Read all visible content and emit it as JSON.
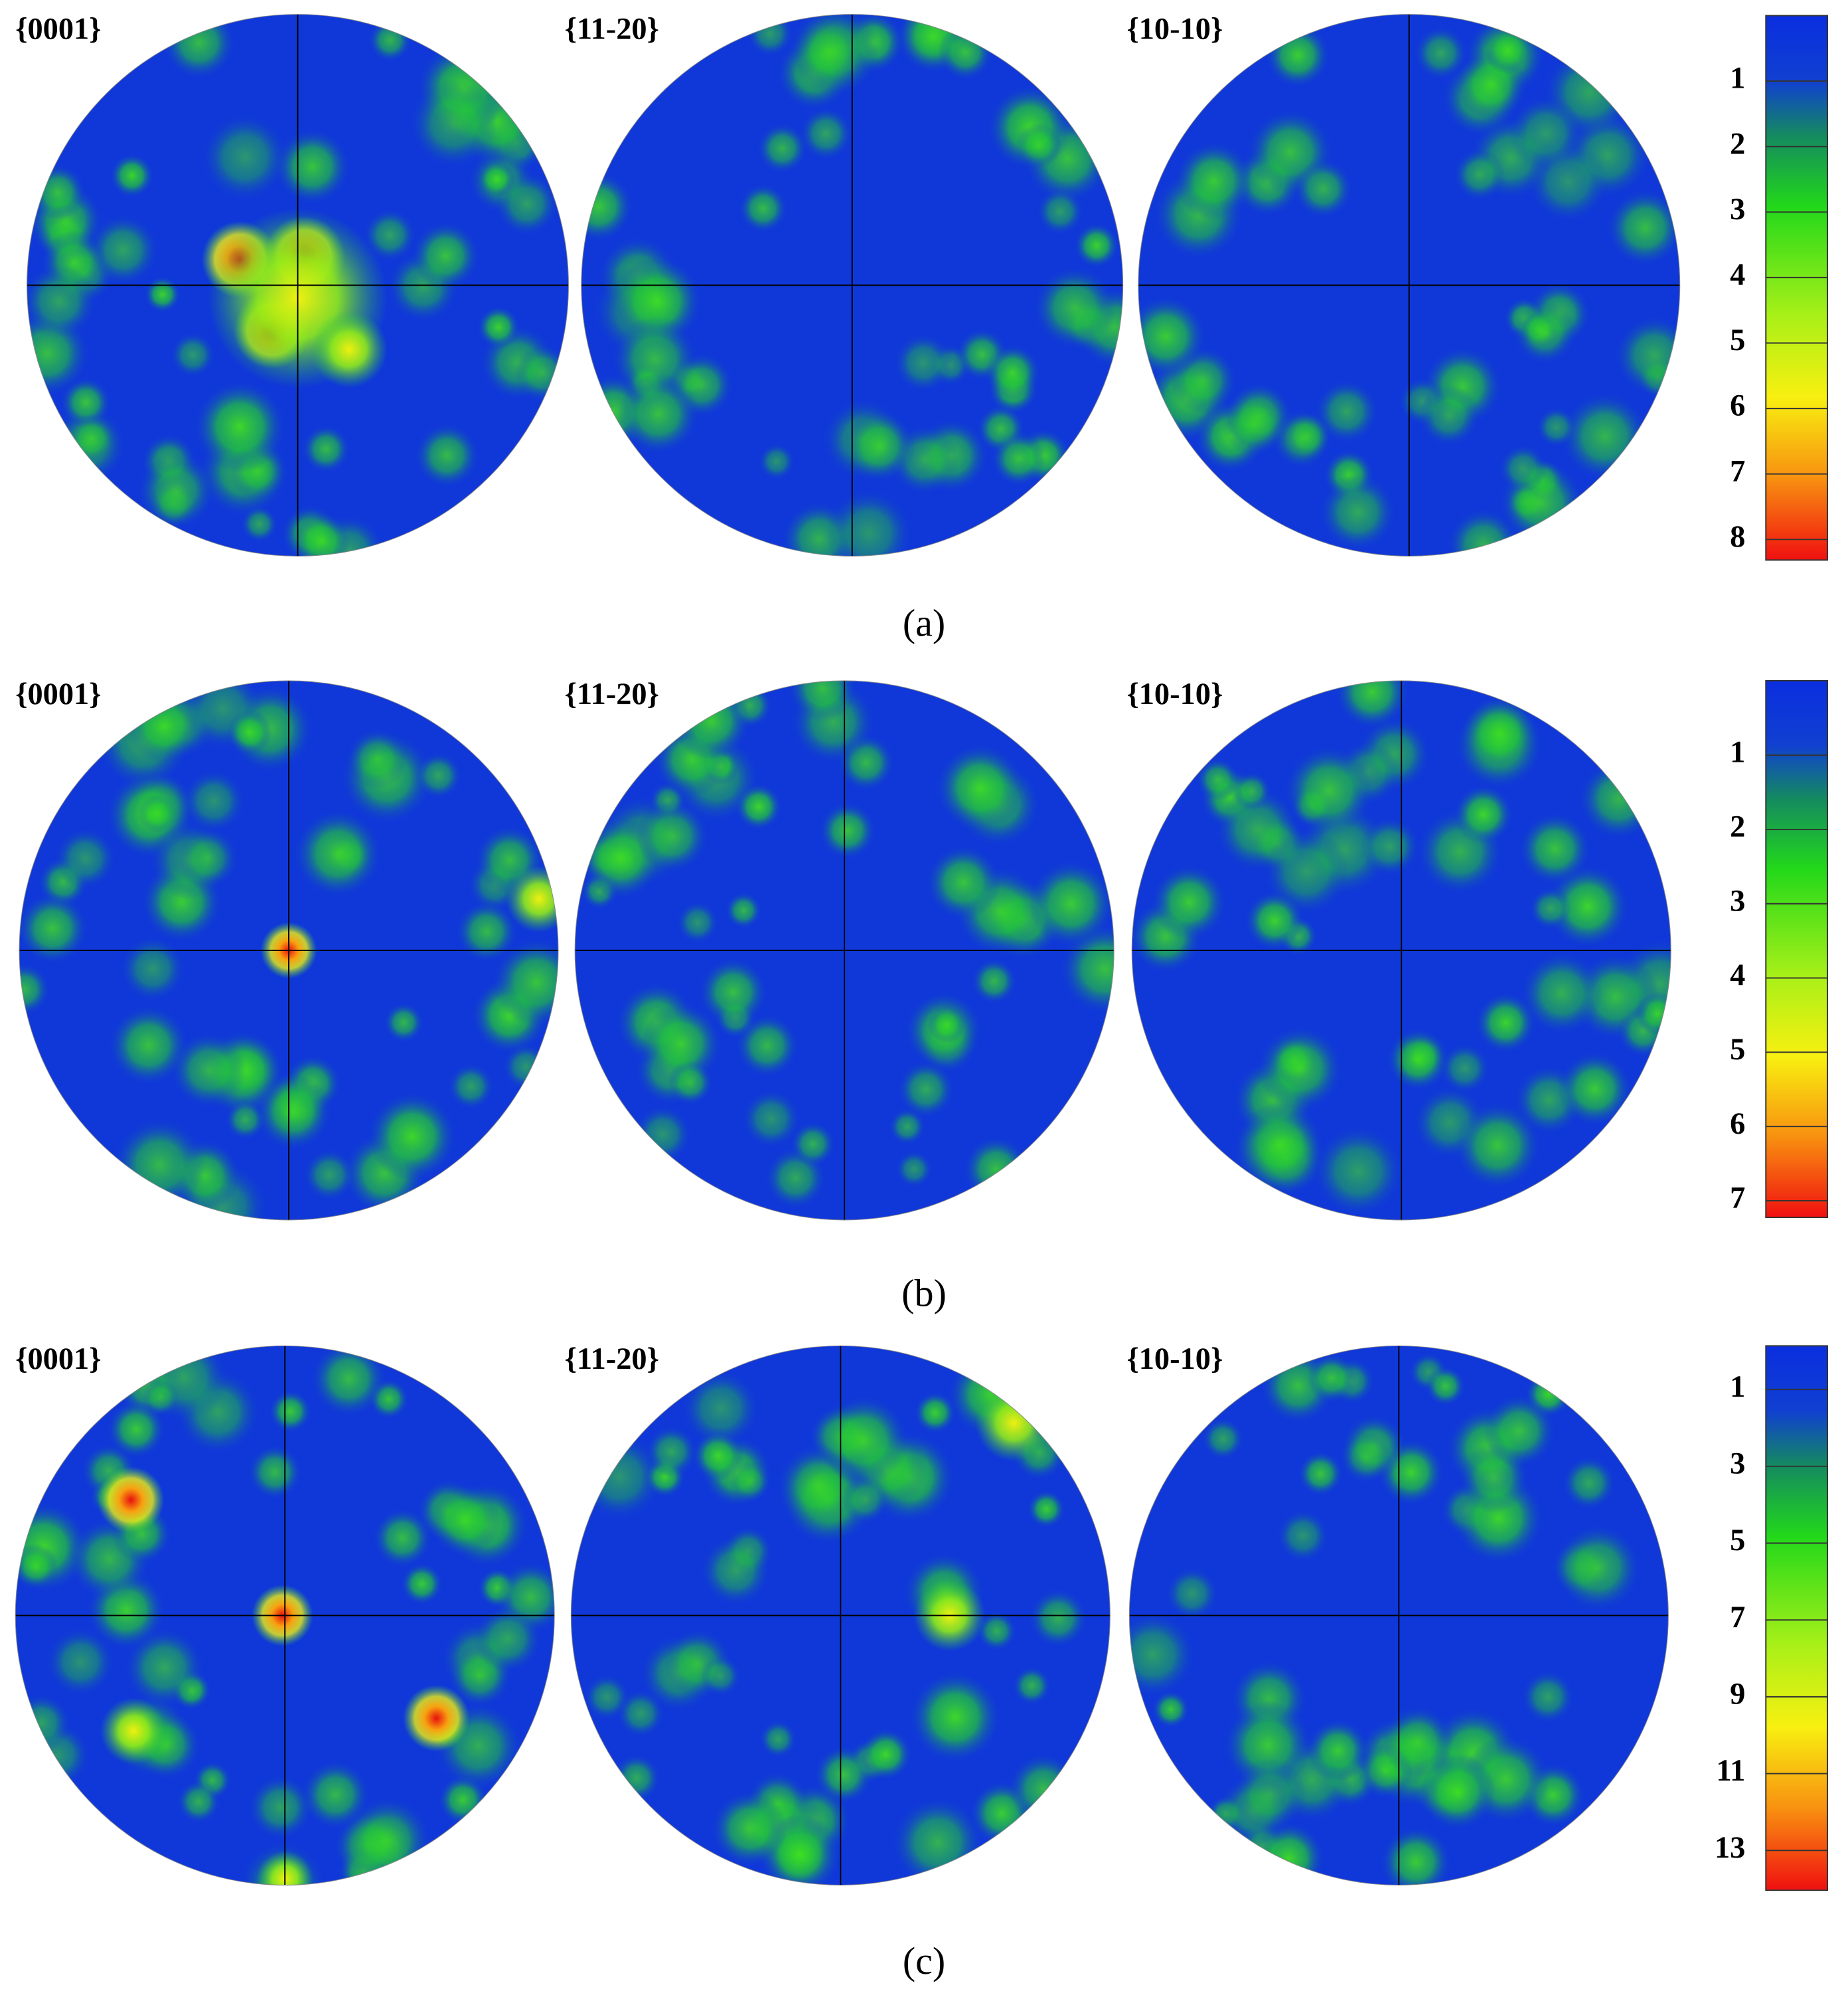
{
  "panels": [
    {
      "caption": "(a)",
      "figures": [
        "{0001}",
        "{11-20}",
        "{10-10}"
      ],
      "colorbar_ticks": [
        1,
        2,
        3,
        4,
        5,
        6,
        7,
        8
      ]
    },
    {
      "caption": "(b)",
      "figures": [
        "{0001}",
        "{11-20}",
        "{10-10}"
      ],
      "colorbar_ticks": [
        1,
        2,
        3,
        4,
        5,
        6,
        7
      ]
    },
    {
      "caption": "(c)",
      "figures": [
        "{0001}",
        "{11-20}",
        "{10-10}"
      ],
      "colorbar_ticks": [
        1,
        3,
        5,
        7,
        9,
        11,
        13
      ]
    }
  ]
}
